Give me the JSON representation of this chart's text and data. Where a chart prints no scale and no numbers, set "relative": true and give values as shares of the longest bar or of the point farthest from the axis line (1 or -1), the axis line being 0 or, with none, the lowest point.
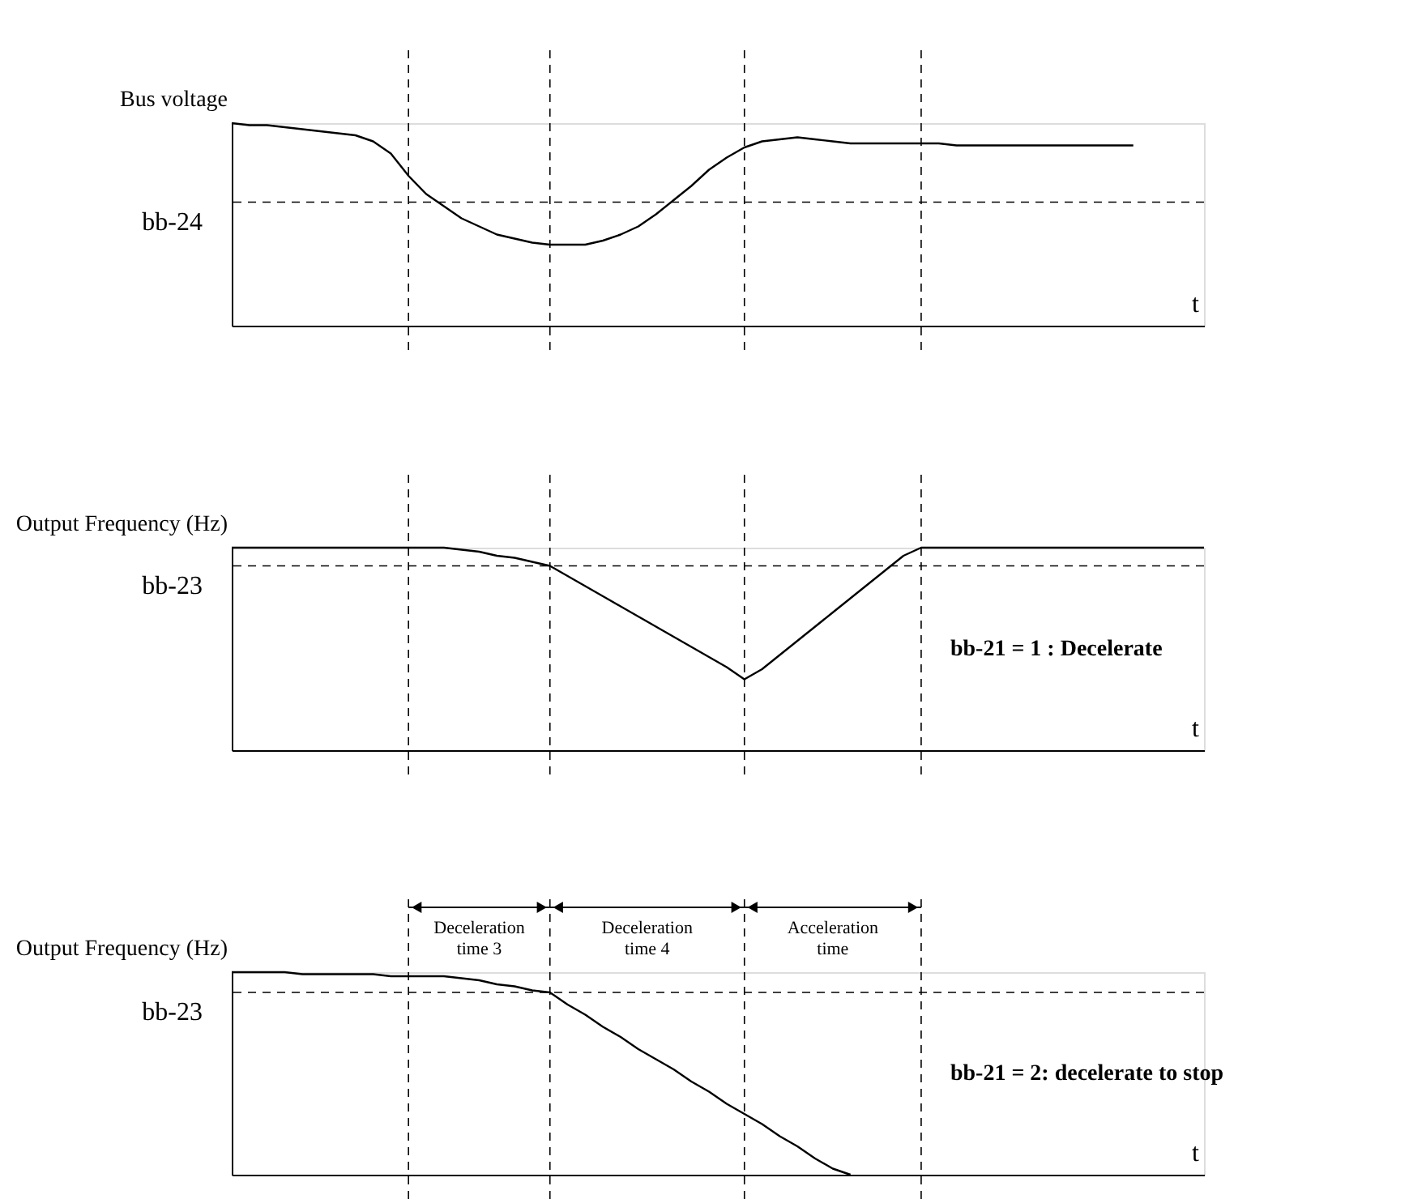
{
  "chart_data": [
    {
      "type": "line",
      "relative": true,
      "grid": "x",
      "ylabel": "Bus voltage",
      "xlabel": "t",
      "categories": [
        null,
        null,
        null,
        null,
        null,
        null,
        null,
        null,
        null,
        null,
        null,
        null,
        null,
        null,
        null,
        null,
        null,
        null,
        null,
        null,
        null,
        null,
        null,
        null,
        null,
        null,
        null,
        null,
        null,
        null,
        null,
        null,
        null,
        null,
        null,
        null,
        null,
        null,
        null,
        null,
        null,
        null,
        null,
        null,
        null,
        null,
        null,
        null,
        null,
        null,
        null,
        null,
        null,
        null,
        null,
        null
      ],
      "series": [
        {
          "color": "#000000",
          "values": [
            1.0,
            0.99,
            0.99,
            0.98,
            0.97,
            0.96,
            0.95,
            0.94,
            0.91,
            0.85,
            0.74,
            0.65,
            0.59,
            0.53,
            0.49,
            0.45,
            0.43,
            0.41,
            0.4,
            0.4,
            0.4,
            0.42,
            0.45,
            0.49,
            0.55,
            0.62,
            0.69,
            0.77,
            0.83,
            0.88,
            0.91,
            0.92,
            0.93,
            0.92,
            0.91,
            0.9,
            0.9,
            0.9,
            0.9,
            0.9,
            0.9,
            0.89,
            0.89,
            0.89,
            0.89,
            0.89,
            0.89,
            0.89,
            0.89,
            0.89,
            0.89,
            0.89,
            null,
            null,
            null,
            null
          ]
        }
      ],
      "ref_lines": [
        {
          "axis": "y",
          "value": 0.61,
          "label": "bb-24",
          "line_style": "dashed"
        }
      ]
    },
    {
      "type": "line",
      "relative": true,
      "grid": "x",
      "ylabel": "Output Frequency (Hz)",
      "xlabel": "t",
      "categories": [
        null,
        null,
        null,
        null,
        null,
        null,
        null,
        null,
        null,
        null,
        null,
        null,
        null,
        null,
        null,
        null,
        null,
        null,
        null,
        null,
        null,
        null,
        null,
        null,
        null,
        null,
        null,
        null,
        null,
        null,
        null,
        null,
        null,
        null,
        null,
        null,
        null,
        null,
        null,
        null,
        null,
        null,
        null,
        null,
        null,
        null,
        null,
        null,
        null,
        null,
        null,
        null,
        null,
        null,
        null,
        null
      ],
      "series": [
        {
          "color": "#000000",
          "values": [
            1.0,
            1.0,
            1.0,
            1.0,
            1.0,
            1.0,
            1.0,
            1.0,
            1.0,
            1.0,
            1.0,
            1.0,
            1.0,
            0.99,
            0.98,
            0.96,
            0.95,
            0.93,
            0.91,
            0.86,
            0.81,
            0.76,
            0.71,
            0.66,
            0.61,
            0.56,
            0.51,
            0.46,
            0.41,
            0.35,
            0.4,
            0.47,
            0.54,
            0.61,
            0.68,
            0.75,
            0.82,
            0.89,
            0.96,
            1.0,
            1.0,
            1.0,
            1.0,
            1.0,
            1.0,
            1.0,
            1.0,
            1.0,
            1.0,
            1.0,
            1.0,
            1.0,
            1.0,
            1.0,
            1.0,
            1.0
          ]
        }
      ],
      "ref_lines": [
        {
          "axis": "y",
          "value": 0.91,
          "label": "bb-23",
          "line_style": "dashed"
        }
      ],
      "annotations": [
        "bb-21 = 1 : Decelerate"
      ]
    },
    {
      "type": "line",
      "relative": true,
      "grid": "x",
      "ylabel": "Output  Frequency (Hz)",
      "xlabel": "t",
      "categories": [
        null,
        null,
        null,
        null,
        null,
        null,
        null,
        null,
        null,
        null,
        null,
        null,
        null,
        null,
        null,
        null,
        null,
        null,
        null,
        null,
        null,
        null,
        null,
        null,
        null,
        null,
        null,
        null,
        null,
        null,
        null,
        null,
        null,
        null,
        null,
        null,
        null,
        null,
        null,
        null,
        null,
        null,
        null,
        null,
        null,
        null,
        null,
        null,
        null,
        null,
        null,
        null,
        null,
        null,
        null,
        null
      ],
      "series": [
        {
          "color": "#000000",
          "values": [
            1.0,
            1.0,
            1.0,
            1.0,
            0.99,
            0.99,
            0.99,
            0.99,
            0.99,
            0.98,
            0.98,
            0.98,
            0.98,
            0.97,
            0.96,
            0.94,
            0.93,
            0.91,
            0.9,
            0.84,
            0.79,
            0.73,
            0.68,
            0.62,
            0.57,
            0.52,
            0.46,
            0.41,
            0.35,
            0.3,
            0.25,
            0.19,
            0.14,
            0.08,
            0.03,
            0,
            null,
            null,
            null,
            null,
            null,
            null,
            null,
            null,
            null,
            null,
            null,
            null,
            null,
            null,
            null,
            null,
            null,
            null,
            null,
            null
          ]
        }
      ],
      "ref_lines": [
        {
          "axis": "y",
          "value": 0.9,
          "label": "bb-23",
          "line_style": "dashed"
        }
      ],
      "annotations": [
        "Deceleration time 3",
        "Deceleration time 4",
        "Acceleration time",
        "bb-21 = 2: decelerate to stop"
      ]
    }
  ]
}
